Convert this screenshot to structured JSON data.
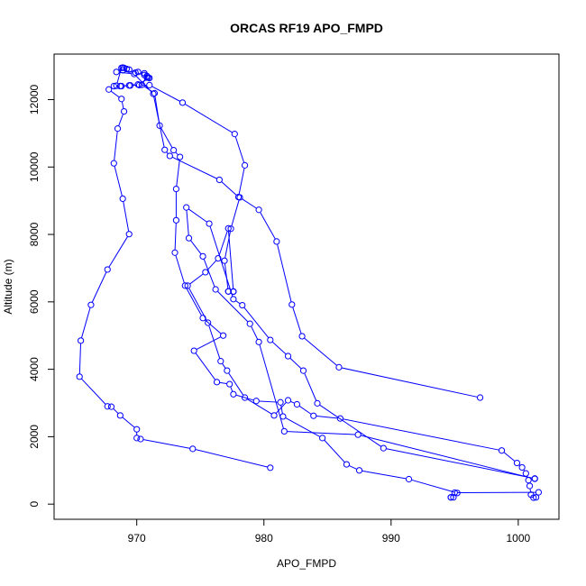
{
  "chart_data": {
    "type": "line",
    "title": "ORCAS RF19 APO_FMPD",
    "xlabel": "APO_FMPD",
    "ylabel": "Altitude (m)",
    "xlim": [
      963.5,
      1003.2
    ],
    "ylim": [
      -450,
      13350
    ],
    "xticks": [
      970,
      980,
      990,
      1000
    ],
    "yticks": [
      0,
      2000,
      4000,
      6000,
      8000,
      10000,
      12000
    ],
    "grid": false,
    "legend": "none",
    "marker": "open-circle",
    "series_color": "#0000ff",
    "series": [
      {
        "x": [
          980.5,
          974.4,
          970.3,
          970.0,
          970.0,
          968.7,
          968.0,
          967.7,
          965.5,
          965.6,
          966.4,
          967.7,
          969.4,
          968.9,
          968.2,
          968.5,
          969.0,
          968.8,
          967.8,
          968.2,
          968.8,
          969.5,
          970.2,
          971.0,
          973.6,
          977.7,
          978.5,
          978.0,
          976.5,
          972.6,
          972.2,
          971.3,
          969.8,
          968.4,
          968.9,
          969.9,
          970.6,
          970.8
        ],
        "y": [
          1080,
          1640,
          1930,
          1960,
          2220,
          2630,
          2890,
          2900,
          3780,
          4850,
          5910,
          6960,
          8010,
          9060,
          10110,
          11140,
          11650,
          12020,
          12300,
          12400,
          12400,
          12420,
          12430,
          12430,
          11910,
          10980,
          10050,
          9110,
          9620,
          10330,
          10510,
          12170,
          12760,
          12820,
          12870,
          12800,
          12730,
          12660
        ]
      },
      {
        "x": [
          970.8,
          970.9,
          971.0,
          970.1,
          969.4,
          968.7,
          968.4,
          968.8,
          968.9,
          969.0,
          969.2,
          969.4,
          970.1,
          970.6,
          970.8,
          970.4,
          971.4,
          971.8,
          972.9,
          973.4,
          973.1,
          973.1,
          973.0,
          973.8,
          975.2,
          976.8,
          974.5,
          976.3,
          977.3,
          977.6,
          979.4,
          981.3,
          981.5,
          984.6,
          986.5,
          987.5,
          991.4,
          995.2,
          994.9,
          994.7
        ],
        "y": [
          12660,
          12650,
          12640,
          12450,
          12420,
          12400,
          12410,
          12940,
          12950,
          12940,
          12910,
          12890,
          12820,
          12780,
          12700,
          12440,
          12190,
          11230,
          10500,
          10300,
          9350,
          8420,
          7460,
          6480,
          5520,
          5000,
          4550,
          3620,
          3560,
          3260,
          3060,
          3020,
          2600,
          1960,
          1180,
          1000,
          740,
          330,
          200,
          200
        ]
      },
      {
        "x": [
          994.7,
          995.0,
          1001.6,
          1001.4,
          1001.2,
          1001.0,
          1000.9,
          1000.8,
          1000.6,
          1000.3,
          999.9,
          998.7,
          986.0,
          983.9,
          982.6,
          981.9,
          980.8,
          978.5,
          977.1,
          976.6,
          975.6,
          974.0,
          975.4,
          976.4,
          977.2,
          977.6,
          977.6,
          977.2,
          977.2,
          976.9,
          977.4,
          978.1,
          979.6,
          981.0,
          982.2,
          983.0,
          985.9,
          997.0
        ],
        "y": [
          200,
          340,
          350,
          200,
          190,
          280,
          540,
          710,
          910,
          1090,
          1220,
          1590,
          2540,
          2620,
          2960,
          3080,
          2630,
          3160,
          3960,
          4240,
          5380,
          6480,
          6880,
          7290,
          8180,
          6310,
          6300,
          6310,
          6310,
          7220,
          8170,
          9100,
          8730,
          7790,
          5920,
          4980,
          4060,
          3160
        ]
      },
      {
        "x": [
          1001.3,
          987.4,
          981.6,
          979.6,
          978.9,
          976.2,
          975.2,
          974.1,
          973.9,
          975.7,
          977.6,
          978.3,
          980.5,
          981.9,
          983.1,
          984.2,
          989.4,
          1001.3
        ],
        "y": [
          750,
          2060,
          2160,
          4810,
          5350,
          6370,
          7350,
          7890,
          8800,
          8320,
          6080,
          5900,
          4870,
          4390,
          3960,
          2990,
          1660,
          760
        ]
      }
    ]
  }
}
